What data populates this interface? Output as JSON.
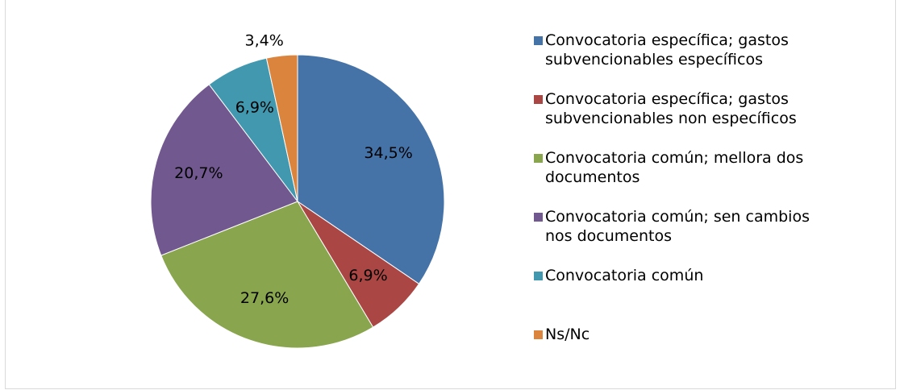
{
  "chart_data": {
    "type": "pie",
    "categories": [
      "Convocatoria específica; gastos subvencionables específicos",
      "Convocatoria específica; gastos subvencionables non específicos",
      "Convocatoria común; mellora dos documentos",
      "Convocatoria común; sen cambios nos documentos",
      "Convocatoria común",
      "Ns/Nc"
    ],
    "values": [
      34.5,
      6.9,
      27.6,
      20.7,
      6.9,
      3.4
    ],
    "value_labels": [
      "34,5%",
      "6,9%",
      "27,6%",
      "20,7%",
      "6,9%",
      "3,4%"
    ],
    "colors": [
      "#4572a7",
      "#aa4643",
      "#89a54e",
      "#71588f",
      "#4198af",
      "#db843d"
    ],
    "legend": "right"
  }
}
